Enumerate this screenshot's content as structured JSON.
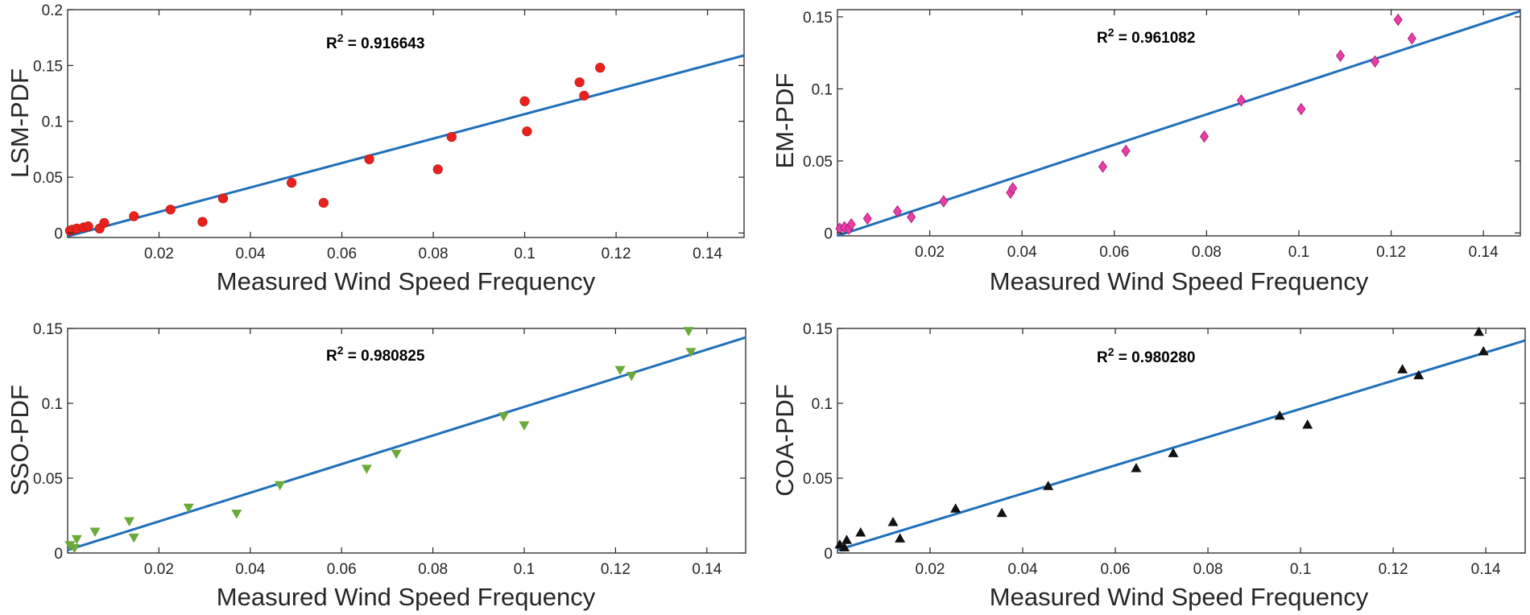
{
  "fit_color": "#1f6fba",
  "chart_data": [
    {
      "type": "scatter",
      "name": "lsm",
      "xlabel": "Measured Wind Speed Frequency",
      "ylabel": "LSM-PDF",
      "r2_label": "R",
      "r2_sup": "2",
      "r2_value": " = 0.916643",
      "xlim": [
        0,
        0.148
      ],
      "ylim": [
        -0.004,
        0.2
      ],
      "xticks": [
        0.02,
        0.04,
        0.06,
        0.08,
        0.1,
        0.12,
        0.14
      ],
      "xtick_labels": [
        "0.02",
        "0.04",
        "0.06",
        "0.08",
        "0.1",
        "0.12",
        "0.14"
      ],
      "yticks": [
        0,
        0.05,
        0.1,
        0.15,
        0.2
      ],
      "ytick_labels": [
        "0",
        "0.05",
        "0.1",
        "0.15",
        "0.2"
      ],
      "marker": "circle",
      "marker_color": "#e8211d",
      "fit_line": {
        "x": [
          0,
          0.148
        ],
        "y": [
          -0.003,
          0.159
        ]
      },
      "points": [
        {
          "x": 0.0005,
          "y": 0.002
        },
        {
          "x": 0.001,
          "y": 0.003
        },
        {
          "x": 0.002,
          "y": 0.004
        },
        {
          "x": 0.0035,
          "y": 0.005
        },
        {
          "x": 0.0045,
          "y": 0.006
        },
        {
          "x": 0.007,
          "y": 0.004
        },
        {
          "x": 0.008,
          "y": 0.009
        },
        {
          "x": 0.0145,
          "y": 0.015
        },
        {
          "x": 0.0225,
          "y": 0.021
        },
        {
          "x": 0.0295,
          "y": 0.01
        },
        {
          "x": 0.034,
          "y": 0.031
        },
        {
          "x": 0.049,
          "y": 0.045
        },
        {
          "x": 0.056,
          "y": 0.027
        },
        {
          "x": 0.066,
          "y": 0.066
        },
        {
          "x": 0.081,
          "y": 0.057
        },
        {
          "x": 0.084,
          "y": 0.086
        },
        {
          "x": 0.1,
          "y": 0.118
        },
        {
          "x": 0.1005,
          "y": 0.091
        },
        {
          "x": 0.112,
          "y": 0.135
        },
        {
          "x": 0.113,
          "y": 0.123
        },
        {
          "x": 0.1165,
          "y": 0.148
        }
      ]
    },
    {
      "type": "scatter",
      "name": "em",
      "xlabel": "Measured Wind Speed Frequency",
      "ylabel": "EM-PDF",
      "r2_label": "R",
      "r2_sup": "2",
      "r2_value": " = 0.961082",
      "xlim": [
        0,
        0.148
      ],
      "ylim": [
        -0.002,
        0.155
      ],
      "xticks": [
        0.02,
        0.04,
        0.06,
        0.08,
        0.1,
        0.12,
        0.14
      ],
      "xtick_labels": [
        "0.02",
        "0.04",
        "0.06",
        "0.08",
        "0.1",
        "0.12",
        "0.14"
      ],
      "yticks": [
        0,
        0.05,
        0.1,
        0.15
      ],
      "ytick_labels": [
        "0",
        "0.05",
        "0.1",
        "0.15"
      ],
      "marker": "diamond",
      "marker_color": "#e83ea5",
      "fit_line": {
        "x": [
          0,
          0.148
        ],
        "y": [
          -0.002,
          0.154
        ]
      },
      "points": [
        {
          "x": 0.0005,
          "y": 0.003
        },
        {
          "x": 0.0015,
          "y": 0.004
        },
        {
          "x": 0.0025,
          "y": 0.003
        },
        {
          "x": 0.003,
          "y": 0.006
        },
        {
          "x": 0.0065,
          "y": 0.01
        },
        {
          "x": 0.013,
          "y": 0.015
        },
        {
          "x": 0.016,
          "y": 0.011
        },
        {
          "x": 0.023,
          "y": 0.022
        },
        {
          "x": 0.0375,
          "y": 0.028
        },
        {
          "x": 0.038,
          "y": 0.031
        },
        {
          "x": 0.0575,
          "y": 0.046
        },
        {
          "x": 0.0625,
          "y": 0.057
        },
        {
          "x": 0.0795,
          "y": 0.067
        },
        {
          "x": 0.0875,
          "y": 0.092
        },
        {
          "x": 0.1005,
          "y": 0.086
        },
        {
          "x": 0.109,
          "y": 0.123
        },
        {
          "x": 0.1165,
          "y": 0.119
        },
        {
          "x": 0.1215,
          "y": 0.148
        },
        {
          "x": 0.1245,
          "y": 0.135
        }
      ]
    },
    {
      "type": "scatter",
      "name": "sso",
      "xlabel": "Measured Wind Speed Frequency",
      "ylabel": "SSO-PDF",
      "r2_label": "R",
      "r2_sup": "2",
      "r2_value": " = 0.980825",
      "xlim": [
        0,
        0.1485
      ],
      "ylim": [
        0,
        0.15
      ],
      "xticks": [
        0.02,
        0.04,
        0.06,
        0.08,
        0.1,
        0.12,
        0.14
      ],
      "xtick_labels": [
        "0.02",
        "0.04",
        "0.06",
        "0.08",
        "0.1",
        "0.12",
        "0.14"
      ],
      "yticks": [
        0,
        0.05,
        0.1,
        0.15
      ],
      "ytick_labels": [
        "0",
        "0.05",
        "0.1",
        "0.15"
      ],
      "marker": "triangle-down",
      "marker_color": "#6aaa3a",
      "fit_line": {
        "x": [
          0,
          0.1485
        ],
        "y": [
          0.002,
          0.144
        ]
      },
      "points": [
        {
          "x": 0.0005,
          "y": 0.005
        },
        {
          "x": 0.0015,
          "y": 0.003
        },
        {
          "x": 0.002,
          "y": 0.009
        },
        {
          "x": 0.006,
          "y": 0.014
        },
        {
          "x": 0.0135,
          "y": 0.021
        },
        {
          "x": 0.0145,
          "y": 0.01
        },
        {
          "x": 0.0265,
          "y": 0.03
        },
        {
          "x": 0.037,
          "y": 0.026
        },
        {
          "x": 0.0465,
          "y": 0.045
        },
        {
          "x": 0.0655,
          "y": 0.056
        },
        {
          "x": 0.072,
          "y": 0.066
        },
        {
          "x": 0.0955,
          "y": 0.091
        },
        {
          "x": 0.1,
          "y": 0.085
        },
        {
          "x": 0.121,
          "y": 0.122
        },
        {
          "x": 0.1235,
          "y": 0.118
        },
        {
          "x": 0.136,
          "y": 0.148
        },
        {
          "x": 0.1365,
          "y": 0.134
        }
      ]
    },
    {
      "type": "scatter",
      "name": "coa",
      "xlabel": "Measured Wind Speed Frequency",
      "ylabel": "COA-PDF",
      "r2_label": "R",
      "r2_sup": "2",
      "r2_value": " = 0.980280",
      "xlim": [
        0,
        0.1485
      ],
      "ylim": [
        0,
        0.15
      ],
      "xticks": [
        0.02,
        0.04,
        0.06,
        0.08,
        0.1,
        0.12,
        0.14
      ],
      "xtick_labels": [
        "0.02",
        "0.04",
        "0.06",
        "0.08",
        "0.1",
        "0.12",
        "0.14"
      ],
      "yticks": [
        0,
        0.05,
        0.1,
        0.15
      ],
      "ytick_labels": [
        "0",
        "0.05",
        "0.1",
        "0.15"
      ],
      "marker": "triangle-up",
      "marker_color": "#111111",
      "fit_line": {
        "x": [
          0,
          0.1485
        ],
        "y": [
          0.002,
          0.142
        ]
      },
      "points": [
        {
          "x": 0.0005,
          "y": 0.006
        },
        {
          "x": 0.0015,
          "y": 0.004
        },
        {
          "x": 0.002,
          "y": 0.009
        },
        {
          "x": 0.005,
          "y": 0.014
        },
        {
          "x": 0.012,
          "y": 0.021
        },
        {
          "x": 0.0135,
          "y": 0.01
        },
        {
          "x": 0.0255,
          "y": 0.03
        },
        {
          "x": 0.0355,
          "y": 0.027
        },
        {
          "x": 0.0455,
          "y": 0.045
        },
        {
          "x": 0.0645,
          "y": 0.057
        },
        {
          "x": 0.0725,
          "y": 0.067
        },
        {
          "x": 0.0955,
          "y": 0.092
        },
        {
          "x": 0.1015,
          "y": 0.086
        },
        {
          "x": 0.122,
          "y": 0.123
        },
        {
          "x": 0.1255,
          "y": 0.119
        },
        {
          "x": 0.1385,
          "y": 0.148
        },
        {
          "x": 0.1395,
          "y": 0.135
        }
      ]
    }
  ]
}
